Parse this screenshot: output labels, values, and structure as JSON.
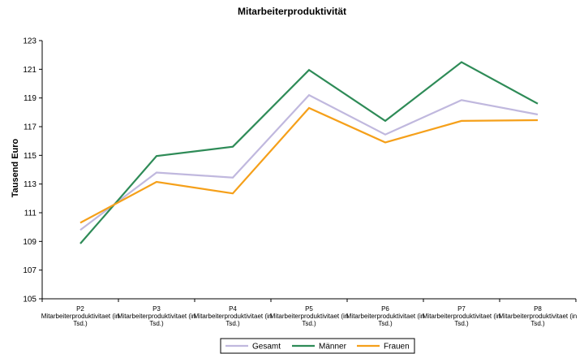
{
  "chart_data": {
    "type": "line",
    "title": "Mitarbeiterproduktivität",
    "xlabel": "",
    "ylabel": "Tausend Euro",
    "ylim": [
      105,
      123
    ],
    "yticks": [
      105,
      107,
      109,
      111,
      113,
      115,
      117,
      119,
      121,
      123
    ],
    "categories": [
      "P2",
      "P3",
      "P4",
      "P5",
      "P6",
      "P7",
      "P8"
    ],
    "category_sublabel": [
      "Mitarbeiterproduktivitaet (in",
      "Tsd.)"
    ],
    "grid": false,
    "legend_position": "bottom",
    "series": [
      {
        "name": "Gesamt",
        "color": "#C0B8DE",
        "values": [
          109.8,
          113.8,
          113.45,
          119.2,
          116.45,
          118.85,
          117.85
        ]
      },
      {
        "name": "Männer",
        "color": "#2E8B57",
        "values": [
          108.85,
          114.95,
          115.6,
          120.95,
          117.4,
          121.5,
          118.6
        ]
      },
      {
        "name": "Frauen",
        "color": "#F5A01A",
        "values": [
          110.3,
          113.15,
          112.35,
          118.3,
          115.9,
          117.4,
          117.45
        ]
      }
    ]
  }
}
